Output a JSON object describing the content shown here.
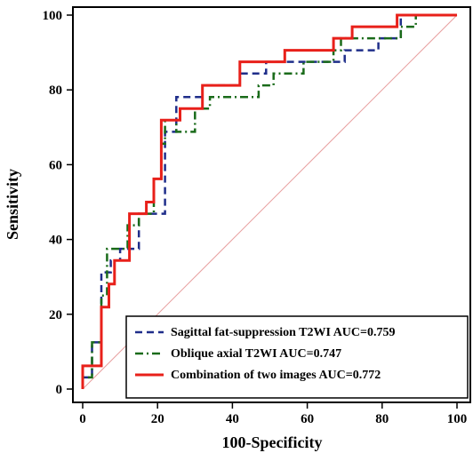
{
  "chart_data": {
    "type": "line",
    "xlabel": "100-Specificity",
    "ylabel": "Sensitivity",
    "xlim": [
      0,
      100
    ],
    "ylim": [
      0,
      100
    ],
    "x_ticks": [
      "0",
      "20",
      "40",
      "60",
      "80",
      "100"
    ],
    "y_ticks": [
      "0",
      "20",
      "40",
      "60",
      "80",
      "100"
    ],
    "grid": false,
    "legend_position": "bottom-right",
    "reference_line": {
      "from": [
        0,
        0
      ],
      "to": [
        100,
        100
      ],
      "color": "#e8a0a0"
    },
    "series": [
      {
        "name": "Sagittal fat-suppression T2WI AUC=0.759",
        "color": "#1f2e8a",
        "style": "dashed",
        "points": [
          [
            0,
            0
          ],
          [
            0,
            3.1
          ],
          [
            2.5,
            3.1
          ],
          [
            2.5,
            12.5
          ],
          [
            5,
            12.5
          ],
          [
            5,
            31.2
          ],
          [
            7.5,
            31.2
          ],
          [
            7.5,
            34.4
          ],
          [
            10,
            34.4
          ],
          [
            10,
            37.5
          ],
          [
            15,
            37.5
          ],
          [
            15,
            46.9
          ],
          [
            22,
            46.9
          ],
          [
            22,
            68.8
          ],
          [
            25,
            68.8
          ],
          [
            25,
            78.1
          ],
          [
            32,
            78.1
          ],
          [
            32,
            81.2
          ],
          [
            42,
            81.2
          ],
          [
            42,
            84.4
          ],
          [
            49,
            84.4
          ],
          [
            49,
            87.5
          ],
          [
            70,
            87.5
          ],
          [
            70,
            90.6
          ],
          [
            79,
            90.6
          ],
          [
            79,
            93.8
          ],
          [
            85,
            93.8
          ],
          [
            85,
            100
          ],
          [
            100,
            100
          ]
        ]
      },
      {
        "name": "Oblique axial T2WI AUC=0.747",
        "color": "#1a6b1a",
        "style": "dashdot",
        "points": [
          [
            0,
            0
          ],
          [
            0,
            3.1
          ],
          [
            2.5,
            3.1
          ],
          [
            2.5,
            12.5
          ],
          [
            5,
            12.5
          ],
          [
            5,
            25
          ],
          [
            6.5,
            25
          ],
          [
            6.5,
            37.5
          ],
          [
            12,
            37.5
          ],
          [
            12,
            43.8
          ],
          [
            15,
            43.8
          ],
          [
            15,
            46.9
          ],
          [
            19,
            46.9
          ],
          [
            19,
            56.2
          ],
          [
            21,
            56.2
          ],
          [
            21,
            65.6
          ],
          [
            22,
            65.6
          ],
          [
            22,
            71.9
          ],
          [
            25,
            71.9
          ],
          [
            25,
            68.8
          ],
          [
            30,
            68.8
          ],
          [
            30,
            75
          ],
          [
            34,
            75
          ],
          [
            34,
            78.1
          ],
          [
            47,
            78.1
          ],
          [
            47,
            81.2
          ],
          [
            51,
            81.2
          ],
          [
            51,
            84.4
          ],
          [
            59,
            84.4
          ],
          [
            59,
            87.5
          ],
          [
            67,
            87.5
          ],
          [
            67,
            90.6
          ],
          [
            69,
            90.6
          ],
          [
            69,
            93.8
          ],
          [
            85,
            93.8
          ],
          [
            85,
            96.9
          ],
          [
            89,
            96.9
          ],
          [
            89,
            100
          ],
          [
            100,
            100
          ]
        ]
      },
      {
        "name": "Combination of two images AUC=0.772",
        "color": "#e8201a",
        "style": "solid",
        "points": [
          [
            0,
            0
          ],
          [
            0,
            6.2
          ],
          [
            5,
            6.2
          ],
          [
            5,
            21.9
          ],
          [
            7,
            21.9
          ],
          [
            7,
            28.1
          ],
          [
            8.5,
            28.1
          ],
          [
            8.5,
            34.4
          ],
          [
            12.5,
            34.4
          ],
          [
            12.5,
            46.9
          ],
          [
            17,
            46.9
          ],
          [
            17,
            50
          ],
          [
            19,
            50
          ],
          [
            19,
            56.2
          ],
          [
            21,
            56.2
          ],
          [
            21,
            71.9
          ],
          [
            26,
            71.9
          ],
          [
            26,
            75
          ],
          [
            32,
            75
          ],
          [
            32,
            81.2
          ],
          [
            42,
            81.2
          ],
          [
            42,
            87.5
          ],
          [
            54,
            87.5
          ],
          [
            54,
            90.6
          ],
          [
            67,
            90.6
          ],
          [
            67,
            93.8
          ],
          [
            72,
            93.8
          ],
          [
            72,
            96.9
          ],
          [
            84,
            96.9
          ],
          [
            84,
            100
          ],
          [
            100,
            100
          ]
        ]
      }
    ]
  }
}
